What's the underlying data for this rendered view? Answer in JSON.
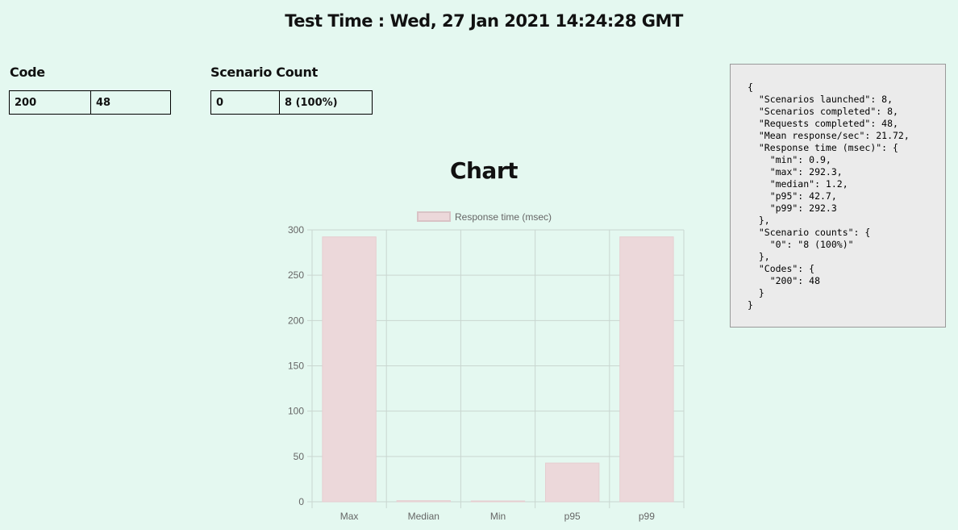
{
  "header": {
    "title": "Test Time : Wed, 27 Jan 2021 14:24:28 GMT"
  },
  "codes": {
    "heading": "Code",
    "rows": [
      {
        "key": "200",
        "value": "48"
      }
    ]
  },
  "scenario_counts": {
    "heading": "Scenario Count",
    "rows": [
      {
        "key": "0",
        "value": "8 (100%)"
      }
    ]
  },
  "chart_section": {
    "heading": "Chart"
  },
  "chart_data": {
    "type": "bar",
    "categories": [
      "Max",
      "Median",
      "Min",
      "p95",
      "p99"
    ],
    "series": [
      {
        "name": "Response time (msec)",
        "values": [
          292.3,
          1.2,
          0.9,
          42.7,
          292.3
        ]
      }
    ],
    "ylim": [
      0,
      300
    ],
    "yticks": [
      0,
      50,
      100,
      150,
      200,
      250,
      300
    ],
    "grid": true,
    "legend": "top",
    "colors": {
      "bar_fill": "#ecd8da",
      "bar_stroke": "#e6cdd0",
      "grid": "#c9d6d0",
      "tick_text": "#666666"
    }
  },
  "summary_json": "{\n  \"Scenarios launched\": 8,\n  \"Scenarios completed\": 8,\n  \"Requests completed\": 48,\n  \"Mean response/sec\": 21.72,\n  \"Response time (msec)\": {\n    \"min\": 0.9,\n    \"max\": 292.3,\n    \"median\": 1.2,\n    \"p95\": 42.7,\n    \"p99\": 292.3\n  },\n  \"Scenario counts\": {\n    \"0\": \"8 (100%)\"\n  },\n  \"Codes\": {\n    \"200\": 48\n  }\n}"
}
